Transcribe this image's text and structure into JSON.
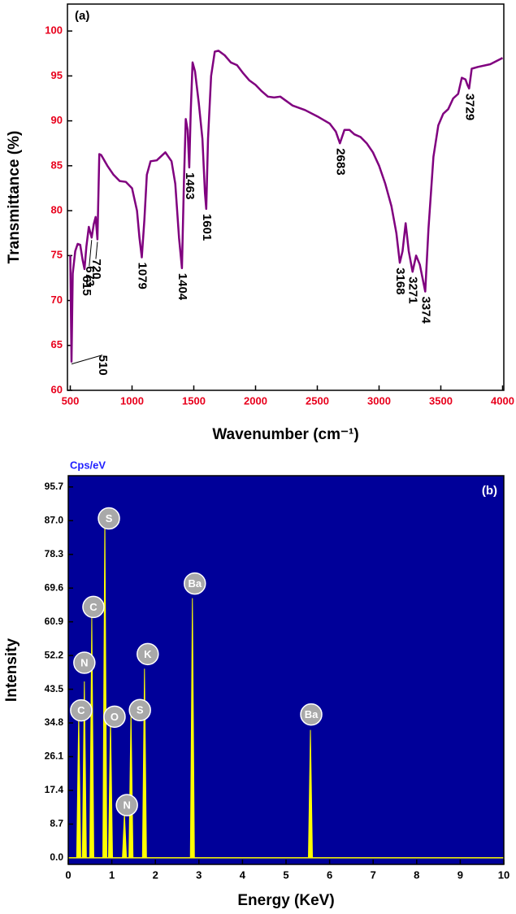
{
  "chart_data": [
    {
      "type": "line",
      "title": "(a)",
      "x_label": "Wavenumber (cm⁻¹)",
      "y_label": "Transmittance (%)",
      "x": [
        500,
        510,
        520,
        540,
        560,
        580,
        600,
        615,
        630,
        650,
        673,
        690,
        705,
        720,
        735,
        750,
        800,
        850,
        900,
        950,
        1000,
        1040,
        1060,
        1079,
        1100,
        1120,
        1150,
        1200,
        1270,
        1320,
        1350,
        1380,
        1404,
        1420,
        1435,
        1450,
        1463,
        1475,
        1490,
        1510,
        1540,
        1570,
        1590,
        1601,
        1615,
        1640,
        1670,
        1700,
        1750,
        1800,
        1850,
        1900,
        1950,
        2000,
        2050,
        2100,
        2150,
        2200,
        2250,
        2300,
        2400,
        2500,
        2600,
        2650,
        2683,
        2720,
        2760,
        2800,
        2850,
        2900,
        2950,
        3000,
        3050,
        3100,
        3140,
        3168,
        3190,
        3215,
        3240,
        3271,
        3300,
        3330,
        3374,
        3400,
        3440,
        3480,
        3520,
        3560,
        3600,
        3640,
        3670,
        3700,
        3715,
        3729,
        3750,
        3800,
        3900,
        4000
      ],
      "values": [
        75,
        63.2,
        73,
        75.5,
        76.3,
        76.2,
        74.5,
        73.5,
        76,
        78.2,
        77,
        78.5,
        79.3,
        76.8,
        86.3,
        86.2,
        85,
        84,
        83.3,
        83.2,
        82.5,
        80,
        77,
        74.8,
        79,
        84,
        85.5,
        85.6,
        86.5,
        85.5,
        83,
        77,
        73.6,
        83,
        90.2,
        89,
        84.8,
        91,
        96.5,
        95.5,
        92,
        88,
        82,
        80.2,
        88,
        95,
        97.7,
        97.8,
        97.3,
        96.5,
        96.2,
        95.3,
        94.5,
        94,
        93.3,
        92.7,
        92.6,
        92.7,
        92.2,
        91.7,
        91.2,
        90.5,
        89.7,
        88.8,
        87.5,
        89,
        89,
        88.5,
        88.2,
        87.5,
        86.5,
        85,
        83,
        80.5,
        77.5,
        74.2,
        75.5,
        78.6,
        75.5,
        73.2,
        75,
        74,
        71,
        78,
        86,
        89.5,
        90.8,
        91.3,
        92.5,
        93,
        94.8,
        94.6,
        94,
        93.6,
        95.8,
        96,
        96.3,
        97
      ],
      "color": "#80007f",
      "tick_label_color": "#e8001c",
      "peak_labels": [
        510,
        615,
        673,
        720,
        1079,
        1404,
        1463,
        1601,
        2683,
        3168,
        3271,
        3374,
        3729
      ],
      "xlim": [
        477,
        4010
      ],
      "ylim": [
        60,
        103
      ],
      "xticks": [
        500,
        1000,
        1500,
        2000,
        2500,
        3000,
        3500,
        4000
      ],
      "yticks": [
        60,
        65,
        70,
        75,
        80,
        85,
        90,
        95,
        100
      ]
    },
    {
      "type": "bar",
      "title": "(b)",
      "unit_label": "Cps/eV",
      "x_label": "Energy (KeV)",
      "y_label": "Intensity",
      "categories": [
        "C",
        "N",
        "C",
        "S",
        "O",
        "N",
        "S",
        "K",
        "Ba",
        "Ba"
      ],
      "x": [
        0.24,
        0.37,
        0.54,
        0.84,
        0.97,
        1.29,
        1.44,
        1.75,
        2.85,
        5.56
      ],
      "values": [
        37,
        45.5,
        62,
        88,
        36,
        11.5,
        37.7,
        48.8,
        67,
        33
      ],
      "color": "#ffff00",
      "background": "#000099",
      "xlim": [
        0,
        10
      ],
      "ylim": [
        -1.7,
        98.6
      ],
      "xticks": [
        0,
        1,
        2,
        3,
        4,
        5,
        6,
        7,
        8,
        9,
        10
      ],
      "yticks": [
        {
          "value": 0,
          "label": "0.0"
        },
        8.7,
        17.4,
        26.1,
        34.8,
        43.5,
        52.2,
        60.9,
        69.6,
        78.3,
        {
          "value": 87,
          "label": "87.0"
        },
        95.7
      ]
    }
  ]
}
